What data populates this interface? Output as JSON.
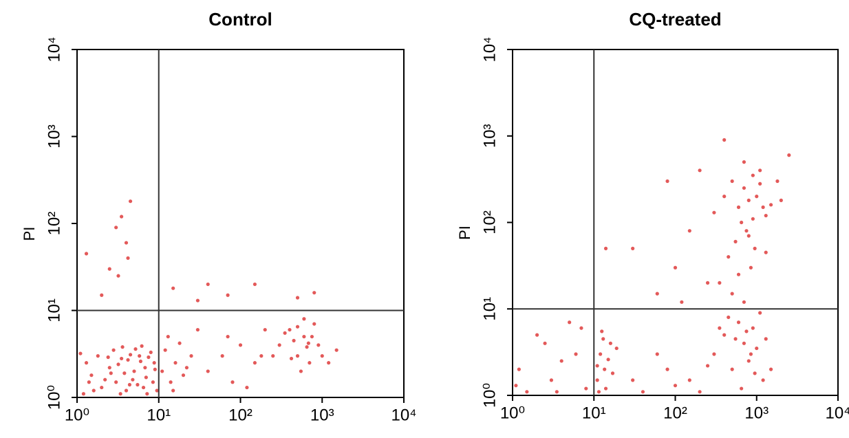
{
  "chart_data": [
    {
      "type": "scatter",
      "title": "Control",
      "ylabel": "PI",
      "color": "#d40000",
      "log_x": true,
      "log_y": true,
      "xlim": [
        1,
        10000
      ],
      "ylim": [
        1,
        10000
      ],
      "xticks": [
        {
          "value": 1,
          "label": "10⁰"
        },
        {
          "value": 10,
          "label": "10¹"
        },
        {
          "value": 100,
          "label": "10²"
        },
        {
          "value": 1000,
          "label": "10³"
        },
        {
          "value": 10000,
          "label": "10⁴"
        }
      ],
      "yticks": [
        {
          "value": 1,
          "label": "10⁰"
        },
        {
          "value": 10,
          "label": "10¹"
        },
        {
          "value": 100,
          "label": "10²"
        },
        {
          "value": 1000,
          "label": "10³"
        },
        {
          "value": 10000,
          "label": "10⁴"
        }
      ],
      "quadrant": [
        10,
        10
      ],
      "x": [
        1.2,
        1.5,
        2,
        2.5,
        3,
        3.5,
        4,
        4.5,
        5,
        5.5,
        6,
        7,
        8,
        9,
        1.3,
        1.8,
        2.2,
        2.8,
        3.2,
        3.8,
        4.2,
        5.2,
        6.5,
        7.5,
        8.5,
        1.1,
        1.6,
        2.4,
        3.4,
        4.8,
        5.8,
        6.8,
        9.5,
        1.4,
        2.6,
        3.6,
        4.4,
        6.2,
        7.2,
        8.8,
        3.5,
        4,
        4.5,
        3,
        2.5,
        4.2,
        1.3,
        3.2,
        2,
        11,
        12,
        14,
        16,
        18,
        20,
        13,
        25,
        15,
        22,
        300,
        400,
        500,
        600,
        700,
        800,
        450,
        550,
        650,
        350,
        900,
        1000,
        1200,
        750,
        250,
        600,
        500,
        420,
        680,
        1500,
        40,
        60,
        80,
        100,
        150,
        200,
        70,
        120,
        30,
        180,
        15,
        40,
        70,
        150,
        500,
        800,
        30
      ],
      "values": [
        1.1,
        1.8,
        1.3,
        2.2,
        1.5,
        2.8,
        1.2,
        3.1,
        2,
        1.4,
        2.6,
        1.7,
        3.3,
        2.1,
        2.5,
        3,
        1.6,
        3.5,
        2.4,
        1.9,
        2.7,
        3.6,
        1.3,
        2.9,
        1.5,
        3.2,
        1.2,
        2.9,
        1.1,
        1.6,
        3,
        2.2,
        1.2,
        1.5,
        1.9,
        3.8,
        1.4,
        3.9,
        1.1,
        2.5,
        120,
        60,
        180,
        90,
        30,
        40,
        45,
        25,
        15,
        2,
        3.5,
        1.5,
        2.5,
        4.2,
        1.8,
        5,
        3,
        1.2,
        2.2,
        4,
        6,
        3,
        5,
        2.5,
        7,
        4.5,
        2,
        3.8,
        5.5,
        4,
        3,
        2.5,
        5,
        3,
        8,
        6.5,
        2.8,
        4.2,
        3.5,
        2,
        3,
        1.5,
        4,
        2.5,
        6,
        5,
        1.3,
        6,
        3,
        18,
        20,
        15,
        20,
        14,
        16,
        13
      ]
    },
    {
      "type": "scatter",
      "title": "CQ-treated",
      "ylabel": "PI",
      "color": "#d40000",
      "log_x": true,
      "log_y": true,
      "xlim": [
        1,
        10000
      ],
      "ylim": [
        1,
        10000
      ],
      "xticks": [
        {
          "value": 1,
          "label": "10⁰"
        },
        {
          "value": 10,
          "label": "10¹"
        },
        {
          "value": 100,
          "label": "10²"
        },
        {
          "value": 1000,
          "label": "10³"
        },
        {
          "value": 10000,
          "label": "10⁴"
        }
      ],
      "yticks": [
        {
          "value": 1,
          "label": "10⁰"
        },
        {
          "value": 10,
          "label": "10¹"
        },
        {
          "value": 100,
          "label": "10²"
        },
        {
          "value": 1000,
          "label": "10³"
        },
        {
          "value": 10000,
          "label": "10⁴"
        }
      ],
      "quadrant": [
        10,
        10
      ],
      "x": [
        1.2,
        2,
        3,
        5,
        6,
        8,
        1.5,
        4,
        7,
        2.5,
        1.1,
        3.5,
        11,
        12,
        13,
        11,
        14,
        12.5,
        15,
        17,
        19,
        11.5,
        13.5,
        16,
        300,
        400,
        500,
        600,
        700,
        800,
        900,
        1000,
        1100,
        1200,
        450,
        650,
        550,
        750,
        1500,
        350,
        850,
        950,
        250,
        1300,
        40,
        80,
        100,
        150,
        60,
        200,
        30,
        400,
        500,
        600,
        700,
        800,
        900,
        1000,
        1100,
        1200,
        650,
        550,
        750,
        450,
        850,
        350,
        950,
        1300,
        500,
        700,
        600,
        800,
        900,
        1100,
        1500,
        2000,
        1800,
        400,
        2500,
        1300,
        700,
        30,
        100,
        150,
        200,
        60,
        250,
        120,
        14,
        80,
        300
      ],
      "values": [
        2,
        5,
        1.5,
        7,
        3,
        1.2,
        1.1,
        2.5,
        6,
        4,
        1.3,
        1.1,
        1.5,
        3,
        4.5,
        2.2,
        1.2,
        5.5,
        2.6,
        1.8,
        3.5,
        1.1,
        2,
        4,
        3,
        5,
        2,
        7,
        4,
        2.5,
        6,
        3.5,
        9,
        1.5,
        8,
        1.2,
        4.5,
        5.5,
        2,
        6,
        3,
        1.8,
        2.2,
        4.5,
        1.1,
        2,
        1.3,
        1.5,
        3,
        1.1,
        1.5,
        200,
        300,
        150,
        250,
        180,
        350,
        200,
        280,
        150,
        100,
        60,
        80,
        40,
        30,
        20,
        50,
        120,
        15,
        12,
        25,
        70,
        110,
        400,
        160,
        180,
        300,
        900,
        600,
        45,
        500,
        50,
        30,
        80,
        400,
        15,
        20,
        12,
        50,
        300,
        130
      ]
    }
  ]
}
